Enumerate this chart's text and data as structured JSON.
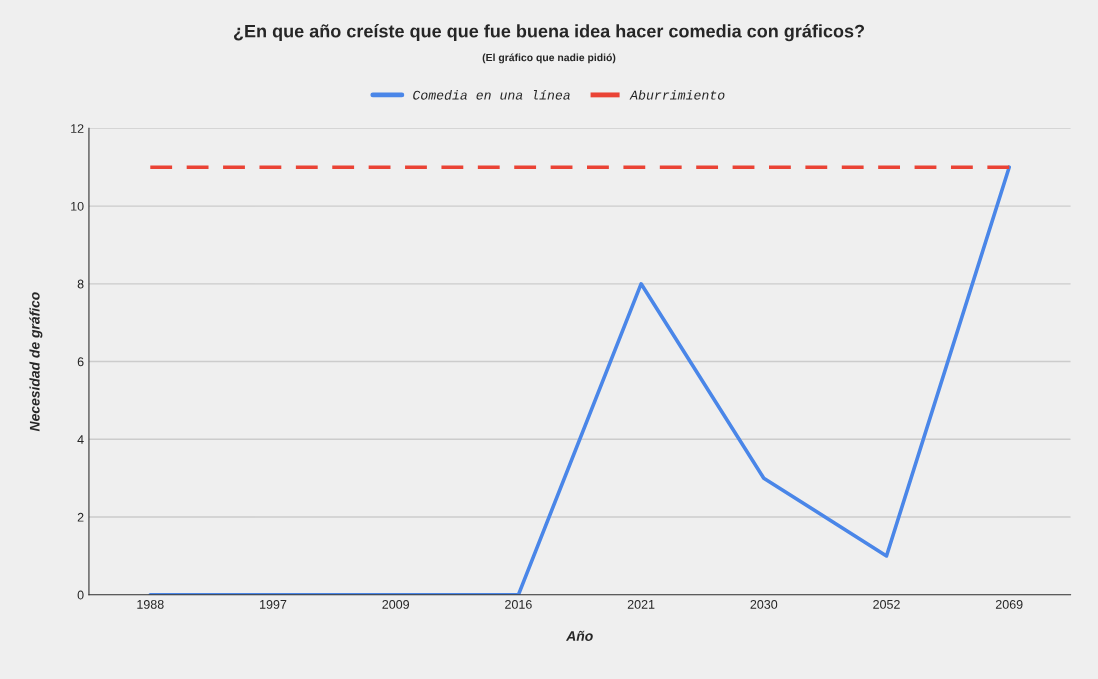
{
  "chart_data": {
    "type": "line",
    "title": "¿En que año creíste que que fue buena idea hacer comedia con gráficos?",
    "subtitle": "(El gráfico que nadie pidió)",
    "xlabel": "Año",
    "ylabel": "Necesidad de gráfico",
    "categories": [
      "1988",
      "1997",
      "2009",
      "2016",
      "2021",
      "2030",
      "2052",
      "2069"
    ],
    "series": [
      {
        "name": "Comedia en una línea",
        "color": "#4a86e8",
        "values": [
          0,
          0,
          0,
          0,
          8,
          3,
          1,
          11
        ],
        "line_style": "solid"
      },
      {
        "name": "Aburrimiento",
        "color": "#ea4335",
        "values": [
          11,
          11,
          11,
          11,
          11,
          11,
          11,
          11
        ],
        "line_style": "dashed"
      }
    ],
    "ylim": [
      0,
      12
    ],
    "yticks": [
      0,
      2,
      4,
      6,
      8,
      10,
      12
    ],
    "grid": "y",
    "legend": "top"
  }
}
